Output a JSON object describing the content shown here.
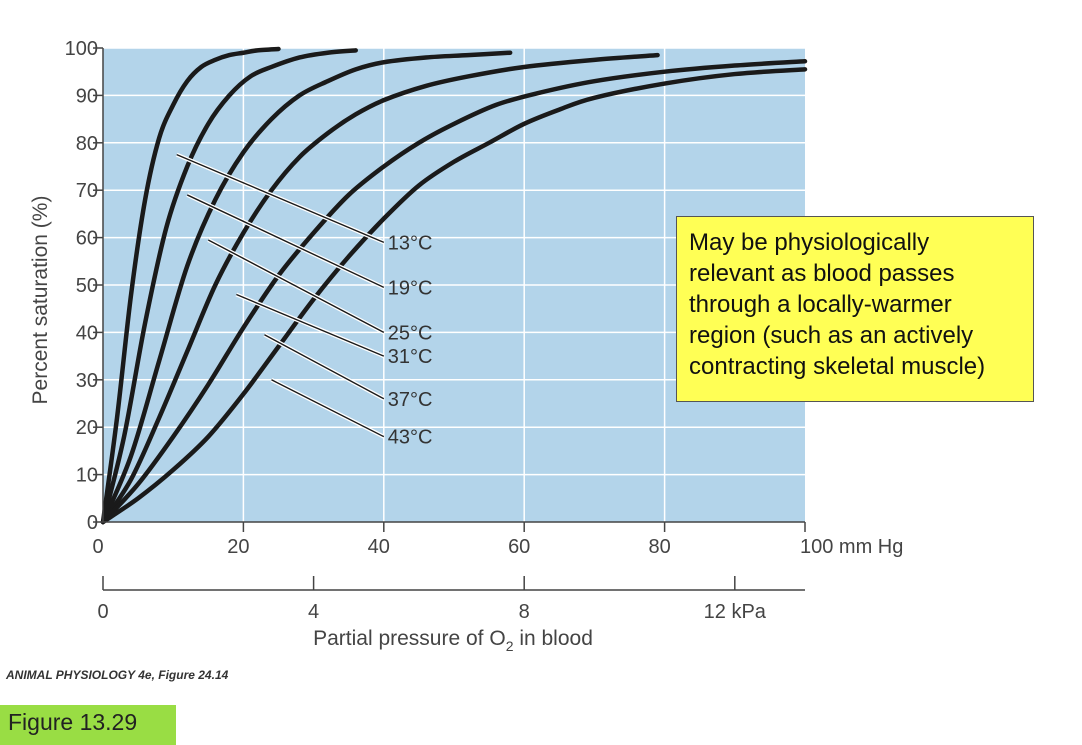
{
  "chart_data": {
    "type": "line",
    "title": "",
    "ylabel": "Percent saturation (%)",
    "xlabel_prefix": "Partial pressure of O",
    "xlabel_sub": "2",
    "xlabel_suffix": " in blood",
    "ylim": [
      0,
      100
    ],
    "xlim": [
      0,
      100
    ],
    "y_ticks": [
      "0",
      "10",
      "20",
      "30",
      "40",
      "50",
      "60",
      "70",
      "80",
      "90",
      "100"
    ],
    "x_ticks_mmhg": [
      "0",
      "20",
      "40",
      "60",
      "80",
      "100 mm Hg"
    ],
    "x_ticks_kpa": [
      "0",
      "4",
      "8",
      "12 kPa"
    ],
    "kpa_values": [
      0,
      4,
      8,
      12
    ],
    "mmhg_per_kpa": 7.5,
    "series": [
      {
        "name": "13°C",
        "x": [
          0,
          2,
          4,
          6,
          8,
          10,
          12,
          14,
          16,
          18,
          20,
          22,
          25
        ],
        "y": [
          0,
          22,
          48,
          68,
          81,
          88,
          93,
          96,
          97.5,
          98.5,
          99,
          99.5,
          99.8
        ]
      },
      {
        "name": "19°C",
        "x": [
          0,
          3,
          6,
          9,
          12,
          15,
          18,
          21,
          24,
          28,
          32,
          36
        ],
        "y": [
          0,
          18,
          42,
          62,
          75,
          84,
          90,
          94,
          96,
          98,
          99,
          99.5
        ]
      },
      {
        "name": "25°C",
        "x": [
          0,
          4,
          8,
          12,
          16,
          20,
          24,
          28,
          32,
          36,
          40,
          46,
          52,
          58
        ],
        "y": [
          0,
          14,
          34,
          54,
          68,
          78,
          85,
          90,
          93,
          95.5,
          97,
          98,
          98.5,
          99
        ]
      },
      {
        "name": "31°C",
        "x": [
          0,
          4,
          8,
          12,
          16,
          20,
          24,
          28,
          32,
          36,
          40,
          46,
          52,
          60,
          70,
          79
        ],
        "y": [
          0,
          9,
          22,
          36,
          50,
          61,
          70,
          77,
          82,
          86,
          89,
          92,
          94,
          96,
          97.5,
          98.5
        ]
      },
      {
        "name": "37°C",
        "x": [
          0,
          5,
          10,
          15,
          20,
          25,
          30,
          35,
          40,
          45,
          50,
          56,
          62,
          70,
          80,
          90,
          100
        ],
        "y": [
          0,
          8,
          18,
          29,
          41,
          52,
          61,
          69,
          75,
          80,
          84,
          88,
          90.5,
          93,
          95,
          96.3,
          97.2
        ]
      },
      {
        "name": "43°C",
        "x": [
          0,
          5,
          10,
          15,
          20,
          25,
          30,
          35,
          40,
          45,
          50,
          55,
          60,
          65,
          70,
          80,
          90,
          100
        ],
        "y": [
          0,
          5,
          11,
          18,
          27,
          37,
          47,
          56,
          64,
          71,
          76,
          80,
          84,
          87,
          89.5,
          92.5,
          94.5,
          95.5
        ]
      }
    ],
    "leader_lines": [
      {
        "label": "13°C",
        "from": [
          10.5,
          77.5
        ],
        "to": [
          40,
          59
        ]
      },
      {
        "label": "19°C",
        "from": [
          12,
          69
        ],
        "to": [
          40,
          49.5
        ]
      },
      {
        "label": "25°C",
        "from": [
          15,
          59.5
        ],
        "to": [
          40,
          40
        ]
      },
      {
        "label": "31°C",
        "from": [
          19,
          48
        ],
        "to": [
          40,
          35
        ]
      },
      {
        "label": "37°C",
        "from": [
          23,
          39.5
        ],
        "to": [
          40,
          26
        ]
      },
      {
        "label": "43°C",
        "from": [
          24,
          30
        ],
        "to": [
          40,
          18
        ]
      }
    ],
    "colors": {
      "plot_bg": "#b3d4ea",
      "grid": "#ffffff",
      "curve": "#1a1a1a",
      "axis": "#444444"
    }
  },
  "callout": {
    "text": "May be physiologically relevant as blood passes through a locally-warmer region (such as an actively contracting skeletal muscle)",
    "background": "#ffff55"
  },
  "source_text": "ANIMAL PHYSIOLOGY 4e, Figure 24.14",
  "figure_label": "Figure 13.29",
  "figure_label_color": "#99dd44"
}
